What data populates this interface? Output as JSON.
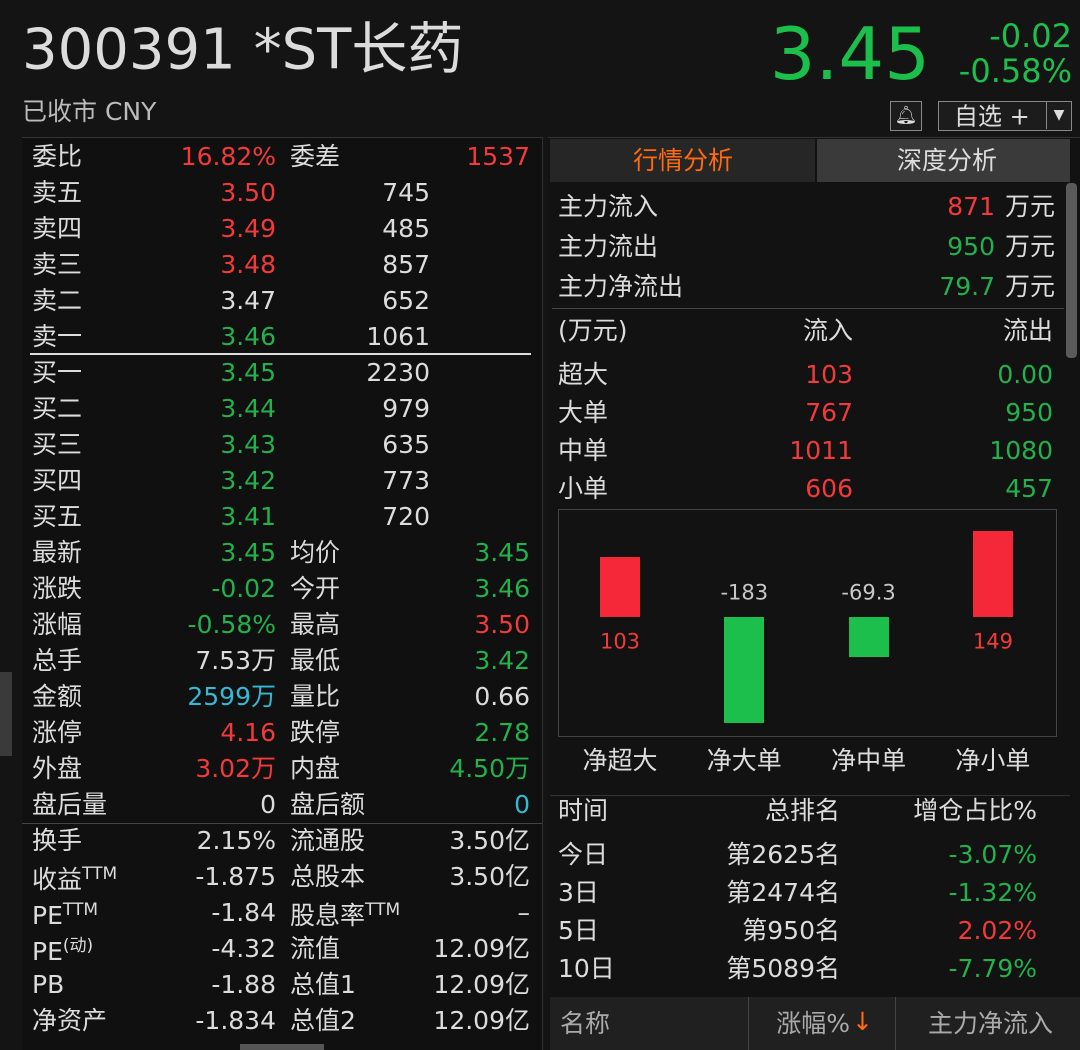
{
  "header": {
    "symbol": "300391 *ST长药",
    "status": "已收市 CNY",
    "price": "3.45",
    "change": "-0.02",
    "change_pct": "-0.58%",
    "watchlist_button": "自选 +",
    "color": "#1dbf4c"
  },
  "order_book": {
    "ratio_row": {
      "label": "委比",
      "value": "16.82%",
      "color": "#f23a3a",
      "label2": "委差",
      "value2": "1537",
      "color2": "#f23a3a"
    },
    "asks": [
      {
        "label": "卖五",
        "price": "3.50",
        "color": "#f23a3a",
        "volume": "745"
      },
      {
        "label": "卖四",
        "price": "3.49",
        "color": "#f23a3a",
        "volume": "485"
      },
      {
        "label": "卖三",
        "price": "3.48",
        "color": "#f23a3a",
        "volume": "857"
      },
      {
        "label": "卖二",
        "price": "3.47",
        "color": "#dcdcdc",
        "volume": "652"
      },
      {
        "label": "卖一",
        "price": "3.46",
        "color": "#22b14c",
        "volume": "1061"
      }
    ],
    "bids": [
      {
        "label": "买一",
        "price": "3.45",
        "color": "#22b14c",
        "volume": "2230"
      },
      {
        "label": "买二",
        "price": "3.44",
        "color": "#22b14c",
        "volume": "979"
      },
      {
        "label": "买三",
        "price": "3.43",
        "color": "#22b14c",
        "volume": "635"
      },
      {
        "label": "买四",
        "price": "3.42",
        "color": "#22b14c",
        "volume": "773"
      },
      {
        "label": "买五",
        "price": "3.41",
        "color": "#22b14c",
        "volume": "720"
      }
    ],
    "stats": [
      {
        "label": "最新",
        "value": "3.45",
        "color": "#22b14c",
        "label2": "均价",
        "value2": "3.45",
        "color2": "#22b14c"
      },
      {
        "label": "涨跌",
        "value": "-0.02",
        "color": "#22b14c",
        "label2": "今开",
        "value2": "3.46",
        "color2": "#22b14c"
      },
      {
        "label": "涨幅",
        "value": "-0.58%",
        "color": "#22b14c",
        "label2": "最高",
        "value2": "3.50",
        "color2": "#f23a3a"
      },
      {
        "label": "总手",
        "value": "7.53万",
        "color": "#dcdcdc",
        "label2": "最低",
        "value2": "3.42",
        "color2": "#22b14c"
      },
      {
        "label": "金额",
        "value": "2599万",
        "color": "#35b8d4",
        "label2": "量比",
        "value2": "0.66",
        "color2": "#dcdcdc"
      },
      {
        "label": "涨停",
        "value": "4.16",
        "color": "#f23a3a",
        "label2": "跌停",
        "value2": "2.78",
        "color2": "#22b14c"
      },
      {
        "label": "外盘",
        "value": "3.02万",
        "color": "#f23a3a",
        "label2": "内盘",
        "value2": "4.50万",
        "color2": "#22b14c"
      },
      {
        "label": "盘后量",
        "value": "0",
        "color": "#dcdcdc",
        "label2": "盘后额",
        "value2": "0",
        "color2": "#35b8d4"
      }
    ],
    "valuation": [
      {
        "label": "换手",
        "value": "2.15%",
        "label2": "流通股",
        "value2": "3.50亿"
      },
      {
        "label": "收益",
        "sup": "TTM",
        "value": "-1.875",
        "label2": "总股本",
        "value2": "3.50亿"
      },
      {
        "label": "PE",
        "sup": "TTM",
        "value": "-1.84",
        "label2": "股息率",
        "sup2": "TTM",
        "value2": "–"
      },
      {
        "label": "PE",
        "sup": "(动)",
        "value": "-4.32",
        "label2": "流值",
        "value2": "12.09亿"
      },
      {
        "label": "PB",
        "value": "-1.88",
        "label2": "总值1",
        "value2": "12.09亿"
      },
      {
        "label": "净资产",
        "value": "-1.834",
        "label2": "总值2",
        "value2": "12.09亿"
      }
    ]
  },
  "tabs": [
    "行情分析",
    "深度分析"
  ],
  "capital_flow": [
    {
      "label": "主力流入",
      "value": "871",
      "color": "#f23a3a",
      "unit": "万元"
    },
    {
      "label": "主力流出",
      "value": "950",
      "color": "#22b14c",
      "unit": "万元"
    },
    {
      "label": "主力净流出",
      "value": "79.7",
      "color": "#22b14c",
      "unit": "万元"
    }
  ],
  "flow_table": {
    "header": [
      "(万元)",
      "流入",
      "流出"
    ],
    "inflow_color": "#f23a3a",
    "outflow_color": "#22b14c",
    "rows": [
      {
        "label": "超大",
        "inflow": "103",
        "outflow": "0.00"
      },
      {
        "label": "大单",
        "inflow": "767",
        "outflow": "950"
      },
      {
        "label": "中单",
        "inflow": "1011",
        "outflow": "1080"
      },
      {
        "label": "小单",
        "inflow": "606",
        "outflow": "457"
      }
    ]
  },
  "net_flow_chart": {
    "categories": [
      "净超大",
      "净大单",
      "净中单",
      "净小单"
    ],
    "values": [
      103,
      -183,
      -69.3,
      149
    ],
    "up_color": "#f5283a",
    "down_color": "#1dbf4c"
  },
  "ranking": {
    "header": [
      "时间",
      "总排名",
      "增仓占比%"
    ],
    "rows": [
      {
        "period": "今日",
        "rank": "第2625名",
        "share": "-3.07%",
        "color": "#22b14c"
      },
      {
        "period": "3日",
        "rank": "第2474名",
        "share": "-1.32%",
        "color": "#22b14c"
      },
      {
        "period": "5日",
        "rank": "第950名",
        "share": "2.02%",
        "color": "#f23a3a"
      },
      {
        "period": "10日",
        "rank": "第5089名",
        "share": "-7.79%",
        "color": "#22b14c"
      }
    ]
  },
  "list_header": {
    "columns": [
      "名称",
      "涨幅%",
      "主力净流入"
    ],
    "sort_arrow": "↓"
  }
}
